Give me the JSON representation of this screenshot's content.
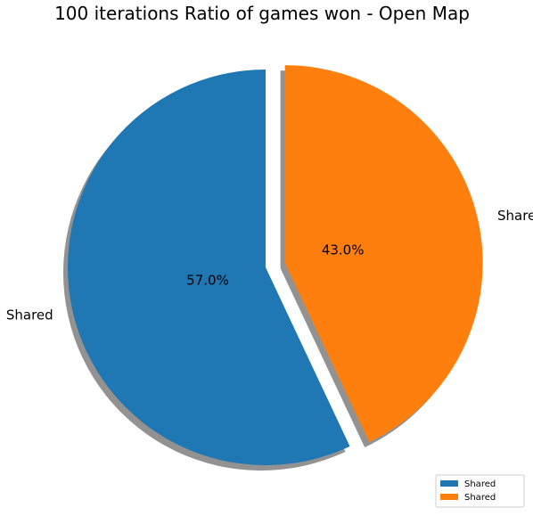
{
  "chart_data": {
    "type": "pie",
    "title": "100 iterations Ratio of games won - Open Map",
    "slices": [
      {
        "label": "Shared",
        "value": 57.0,
        "percent_label": "57.0%",
        "color": "#1f77b4",
        "exploded": false
      },
      {
        "label": "Shared",
        "value": 43.0,
        "percent_label": "43.0%",
        "color": "#ff7f0e",
        "exploded": true
      }
    ],
    "start_angle_deg": 90,
    "direction": "counterclockwise",
    "shadow": true,
    "legend": {
      "placement": "lower-right",
      "entries": [
        "Shared",
        "Shared"
      ]
    }
  }
}
